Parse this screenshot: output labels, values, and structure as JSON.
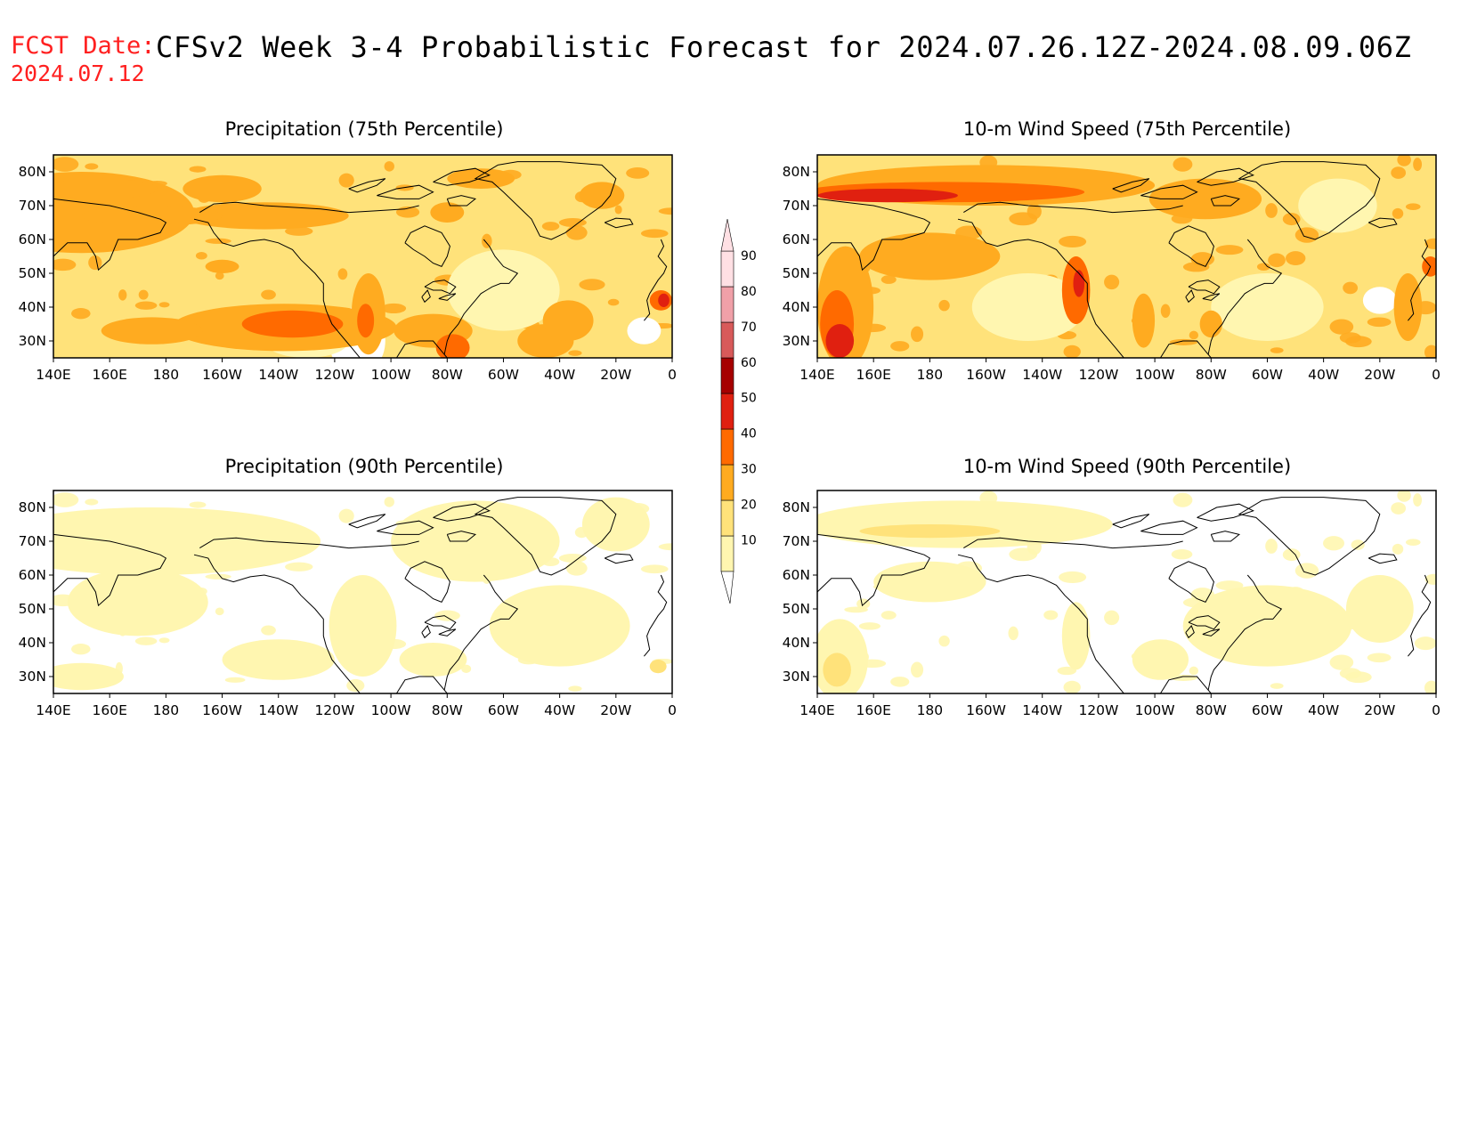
{
  "header": {
    "fcst_label": "FCST Date:",
    "fcst_date": "2024.07.12",
    "title": "CFSv2 Week 3-4 Probabilistic Forecast for 2024.07.26.12Z-2024.08.09.06Z"
  },
  "axes": {
    "lon_labels": [
      "140E",
      "160E",
      "180",
      "160W",
      "140W",
      "120W",
      "100W",
      "80W",
      "60W",
      "40W",
      "20W",
      "0"
    ],
    "lat_labels": [
      "80N",
      "70N",
      "60N",
      "50N",
      "40N",
      "30N"
    ]
  },
  "panels": [
    {
      "id": "precip-75",
      "title": "Precipitation (75th Percentile)"
    },
    {
      "id": "wind-75",
      "title": "10-m Wind Speed (75th Percentile)"
    },
    {
      "id": "precip-90",
      "title": "Precipitation (90th Percentile)"
    },
    {
      "id": "wind-90",
      "title": "10-m Wind Speed (90th Percentile)"
    }
  ],
  "colorbar": {
    "labels": [
      "90",
      "80",
      "70",
      "60",
      "50",
      "40",
      "30",
      "20",
      "10"
    ],
    "colors": {
      "c10": "#fff6b0",
      "c20": "#ffe27a",
      "c30": "#ffab20",
      "c40": "#ff6a00",
      "c50": "#e02010",
      "c60": "#a60000",
      "c70": "#d85a5a",
      "c80": "#f0a0a8",
      "c90": "#ffe0e4",
      "coast": "#000000"
    }
  }
}
